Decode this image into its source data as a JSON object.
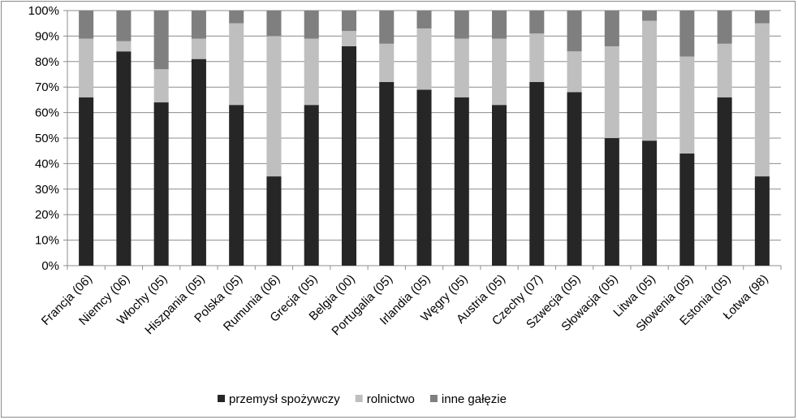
{
  "chart_data": {
    "type": "bar",
    "stacked": "percent",
    "categories": [
      "Francja (06)",
      "Niemcy (06)",
      "Włochy (05)",
      "Hiszpania (05)",
      "Polska (05)",
      "Rumunia (06)",
      "Grecja (05)",
      "Belgia (00)",
      "Portugalia (05)",
      "Irlandia (05)",
      "Węgry (05)",
      "Austria (05)",
      "Czechy (07)",
      "Szwecja (05)",
      "Słowacja (05)",
      "Litwa (05)",
      "Słowenia (05)",
      "Estonia (05)",
      "Łotwa (98)"
    ],
    "series": [
      {
        "name": "przemysł spożywczy",
        "color": "#262626",
        "values": [
          66,
          84,
          64,
          81,
          63,
          35,
          63,
          86,
          72,
          69,
          66,
          63,
          72,
          68,
          50,
          49,
          44,
          66,
          35
        ]
      },
      {
        "name": "rolnictwo",
        "color": "#bfbfbf",
        "values": [
          23,
          4,
          13,
          8,
          32,
          55,
          26,
          6,
          15,
          24,
          23,
          26,
          19,
          16,
          36,
          47,
          38,
          21,
          60
        ]
      },
      {
        "name": "inne gałęzie",
        "color": "#7f7f7f",
        "values": [
          11,
          12,
          23,
          11,
          5,
          10,
          11,
          8,
          13,
          7,
          11,
          11,
          9,
          16,
          14,
          4,
          18,
          13,
          5
        ]
      }
    ],
    "ylim": [
      0,
      100
    ],
    "yticks": [
      "0%",
      "10%",
      "20%",
      "30%",
      "40%",
      "50%",
      "60%",
      "70%",
      "80%",
      "90%",
      "100%"
    ],
    "title": "",
    "xlabel": "",
    "ylabel": "",
    "grid": true,
    "legend_position": "bottom"
  }
}
